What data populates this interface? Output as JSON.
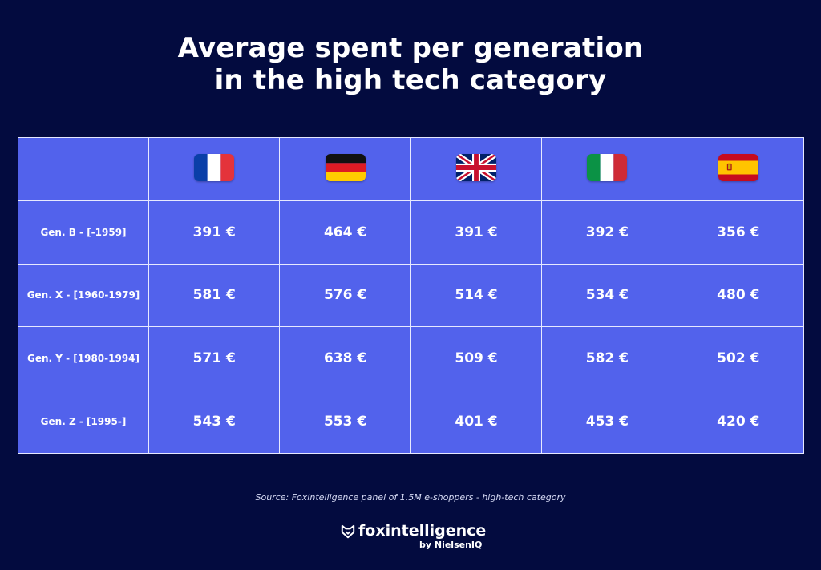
{
  "title": {
    "line1": "Average spent per generation",
    "line2": "in the high tech category"
  },
  "chart_data": {
    "type": "table",
    "columns": [
      {
        "flag": "france-flag-icon",
        "colors": [
          "#0a3fa8",
          "#ffffff",
          "#e4333b"
        ]
      },
      {
        "flag": "germany-flag-icon",
        "colors": [
          "#111111",
          "#dd1b24",
          "#ffcc00"
        ]
      },
      {
        "flag": "uk-flag-icon",
        "colors": [
          "#012169",
          "#ffffff",
          "#c8102e"
        ]
      },
      {
        "flag": "italy-flag-icon",
        "colors": [
          "#0b9245",
          "#ffffff",
          "#cf2b36"
        ]
      },
      {
        "flag": "spain-flag-icon",
        "colors": [
          "#c60b1e",
          "#ffc400"
        ]
      }
    ],
    "rows": [
      {
        "label": "Gen. B - [-1959]",
        "values": [
          "391 €",
          "464 €",
          "391 €",
          "392 €",
          "356 €"
        ]
      },
      {
        "label": "Gen. X - [1960-1979]",
        "values": [
          "581 €",
          "576 €",
          "514 €",
          "534 €",
          "480 €"
        ]
      },
      {
        "label": "Gen. Y - [1980-1994]",
        "values": [
          "571 €",
          "638 €",
          "509 €",
          "582 €",
          "502 €"
        ]
      },
      {
        "label": "Gen. Z - [1995-]",
        "values": [
          "543 €",
          "553 €",
          "401 €",
          "453 €",
          "420 €"
        ]
      }
    ]
  },
  "source": "Source: Foxintelligence panel of 1.5M e-shoppers - high-tech category",
  "logo": {
    "brand": "foxintelligence",
    "by": "by NielsenIQ"
  },
  "colors": {
    "background": "#030b3f",
    "table": "#5262ec",
    "gridline": "#e6e9ff"
  }
}
